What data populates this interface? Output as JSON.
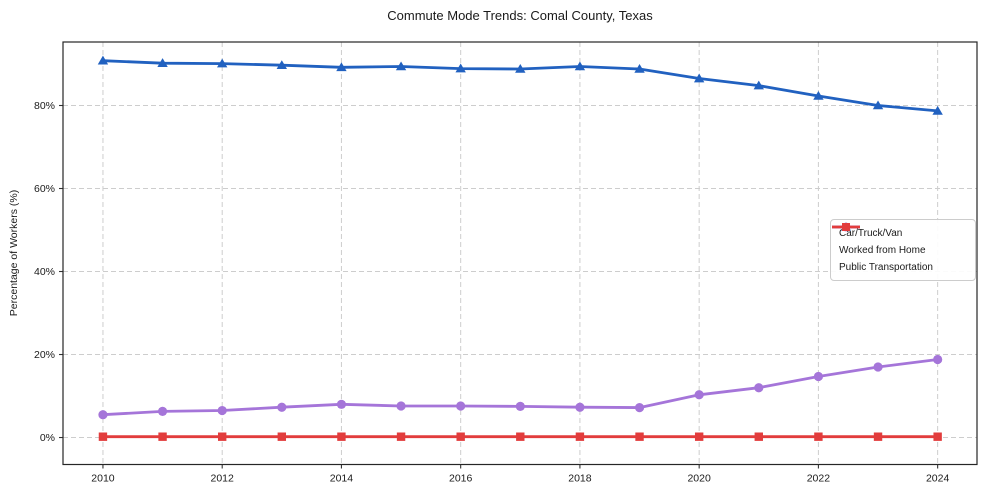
{
  "chart_data": {
    "type": "line",
    "title": "Commute Mode Trends: Comal County, Texas",
    "xlabel": "",
    "ylabel": "Percentage of Workers (%)",
    "x": [
      2010,
      2011,
      2012,
      2013,
      2014,
      2015,
      2016,
      2017,
      2018,
      2019,
      2020,
      2021,
      2022,
      2023,
      2024
    ],
    "x_ticks": [
      2010,
      2012,
      2014,
      2016,
      2018,
      2020,
      2022,
      2024
    ],
    "y_ticks": [
      0,
      20,
      40,
      60,
      80
    ],
    "y_tick_suffix": "%",
    "xlim": [
      2009.33,
      2024.66
    ],
    "ylim": [
      -6.5,
      95.3
    ],
    "grid": true,
    "grid_style": "dashed",
    "legend_position": "center-right",
    "series": [
      {
        "name": "Car/Truck/Van",
        "marker": "triangle",
        "color": "#2161c0",
        "values": [
          90.8,
          90.2,
          90.1,
          89.7,
          89.2,
          89.4,
          88.9,
          88.8,
          89.4,
          88.8,
          86.5,
          84.8,
          82.3,
          80.0,
          78.7
        ]
      },
      {
        "name": "Worked from Home",
        "marker": "circle",
        "color": "#a575d9",
        "values": [
          5.5,
          6.3,
          6.5,
          7.3,
          8.0,
          7.6,
          7.6,
          7.5,
          7.3,
          7.2,
          10.3,
          12.0,
          14.7,
          17.0,
          18.8
        ]
      },
      {
        "name": "Public Transportation",
        "marker": "square",
        "color": "#e23c3c",
        "values": [
          0.2,
          0.2,
          0.2,
          0.2,
          0.2,
          0.2,
          0.2,
          0.2,
          0.2,
          0.2,
          0.2,
          0.2,
          0.2,
          0.2,
          0.2
        ]
      }
    ]
  }
}
